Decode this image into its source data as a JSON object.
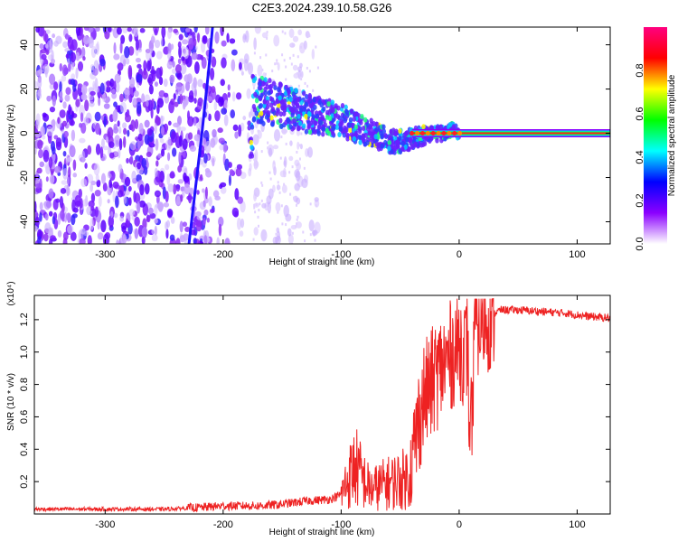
{
  "chart_data": [
    {
      "type": "heatmap",
      "title": "C2E3.2024.239.10.58.G26",
      "xlabel": "Height of straight line (km)",
      "ylabel": "Frequency (Hz)",
      "xlim": [
        -360,
        128
      ],
      "ylim": [
        -50,
        48
      ],
      "xticks": [
        "-300",
        "-200",
        "-100",
        "0",
        "100"
      ],
      "yticks": [
        "-40",
        "-20",
        "0",
        "20",
        "40"
      ],
      "colorbar": {
        "label": "Normalized spectral amplitude",
        "range": [
          0,
          1
        ],
        "ticks": [
          "0.0",
          "0.2",
          "0.4",
          "0.6",
          "0.8"
        ],
        "colormap": [
          "#ffffff",
          "#8b00ff",
          "#0000ff",
          "#00ffff",
          "#00ff00",
          "#ffff00",
          "#ff0000",
          "#ff0080"
        ]
      },
      "ridge": [
        {
          "x": -175,
          "y": 16
        },
        {
          "x": -160,
          "y": 14
        },
        {
          "x": -140,
          "y": 11
        },
        {
          "x": -120,
          "y": 8
        },
        {
          "x": -100,
          "y": 6
        },
        {
          "x": -90,
          "y": 3
        },
        {
          "x": -70,
          "y": -1
        },
        {
          "x": -55,
          "y": -4
        },
        {
          "x": -45,
          "y": -3
        },
        {
          "x": -30,
          "y": -1
        },
        {
          "x": -15,
          "y": 0
        },
        {
          "x": -5,
          "y": 2
        },
        {
          "x": 0,
          "y": 0
        },
        {
          "x": 128,
          "y": 0
        }
      ],
      "trace_line": [
        {
          "x": -229,
          "y": -50
        },
        {
          "x": -218,
          "y": 0
        },
        {
          "x": -212,
          "y": 30
        },
        {
          "x": -209,
          "y": 48
        }
      ],
      "grid": false,
      "legend": "none"
    },
    {
      "type": "line",
      "title": "",
      "xlabel": "Height of straight line (km)",
      "ylabel": "SNR (10 * v/v)",
      "y_multiplier": "(x10⁴)",
      "xlim": [
        -360,
        128
      ],
      "ylim": [
        0,
        1.35
      ],
      "xticks": [
        "-300",
        "-200",
        "-100",
        "0",
        "100"
      ],
      "yticks": [
        "0.2",
        "0.4",
        "0.6",
        "0.8",
        "1.0",
        "1.2"
      ],
      "series": [
        {
          "color": "#ee2222",
          "points": [
            {
              "x": -360,
              "y": 0.03
            },
            {
              "x": -300,
              "y": 0.03
            },
            {
              "x": -250,
              "y": 0.03
            },
            {
              "x": -220,
              "y": 0.04
            },
            {
              "x": -200,
              "y": 0.05
            },
            {
              "x": -170,
              "y": 0.05
            },
            {
              "x": -150,
              "y": 0.06
            },
            {
              "x": -130,
              "y": 0.08
            },
            {
              "x": -110,
              "y": 0.09
            },
            {
              "x": -100,
              "y": 0.12
            },
            {
              "x": -95,
              "y": 0.2
            },
            {
              "x": -88,
              "y": 0.3
            },
            {
              "x": -82,
              "y": 0.22
            },
            {
              "x": -75,
              "y": 0.15
            },
            {
              "x": -65,
              "y": 0.18
            },
            {
              "x": -55,
              "y": 0.2
            },
            {
              "x": -45,
              "y": 0.22
            },
            {
              "x": -40,
              "y": 0.3
            },
            {
              "x": -35,
              "y": 0.55
            },
            {
              "x": -30,
              "y": 0.72
            },
            {
              "x": -25,
              "y": 0.78
            },
            {
              "x": -20,
              "y": 0.85
            },
            {
              "x": -15,
              "y": 0.9
            },
            {
              "x": -10,
              "y": 0.95
            },
            {
              "x": -5,
              "y": 1.0
            },
            {
              "x": 0,
              "y": 1.05
            },
            {
              "x": 5,
              "y": 1.0
            },
            {
              "x": 10,
              "y": 1.12
            },
            {
              "x": 15,
              "y": 1.18
            },
            {
              "x": 25,
              "y": 1.22
            },
            {
              "x": 35,
              "y": 1.26
            },
            {
              "x": 50,
              "y": 1.26
            },
            {
              "x": 70,
              "y": 1.25
            },
            {
              "x": 90,
              "y": 1.24
            },
            {
              "x": 110,
              "y": 1.22
            },
            {
              "x": 128,
              "y": 1.21
            }
          ]
        }
      ],
      "grid": false,
      "legend": "none"
    }
  ]
}
